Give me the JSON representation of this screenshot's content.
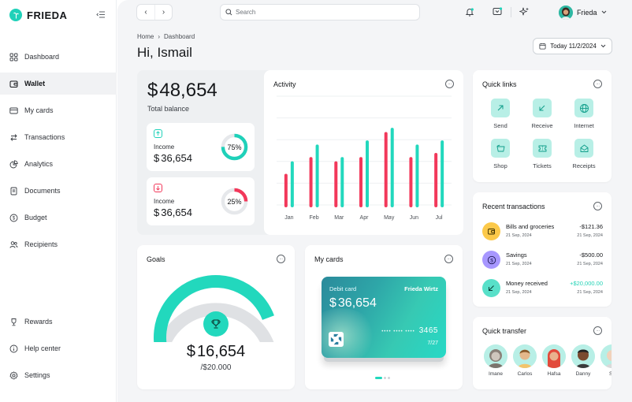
{
  "brand": {
    "name": "FRIEDA",
    "accent": "#1fd1b9",
    "negative": "#f2385a"
  },
  "sidebar": {
    "items": [
      {
        "label": "Dashboard",
        "icon": "grid-icon"
      },
      {
        "label": "Wallet",
        "icon": "wallet-icon",
        "active": true
      },
      {
        "label": "My cards",
        "icon": "card-icon"
      },
      {
        "label": "Transactions",
        "icon": "swap-icon"
      },
      {
        "label": "Analytics",
        "icon": "pie-icon"
      },
      {
        "label": "Documents",
        "icon": "document-icon"
      },
      {
        "label": "Budget",
        "icon": "dollar-circle-icon"
      },
      {
        "label": "Recipients",
        "icon": "users-icon"
      }
    ],
    "bottom_items": [
      {
        "label": "Rewards",
        "icon": "trophy-icon"
      },
      {
        "label": "Help center",
        "icon": "info-icon"
      },
      {
        "label": "Settings",
        "icon": "gear-icon"
      }
    ]
  },
  "topbar": {
    "search_placeholder": "Search",
    "user_name": "Frieda"
  },
  "page": {
    "breadcrumb": [
      "Home",
      "Dashboard"
    ],
    "greeting": "Hi, Ismail",
    "date_label": "Today 11/2/2024"
  },
  "balance": {
    "currency": "$",
    "amount": "48,654",
    "label": "Total balance",
    "income_cards": [
      {
        "label": "Income",
        "amount": "36,654",
        "percent_text": "75%",
        "percent": 0.75,
        "color": "#1fd1b9",
        "direction": "up"
      },
      {
        "label": "Income",
        "amount": "36,654",
        "percent_text": "25%",
        "percent": 0.25,
        "color": "#f2385a",
        "direction": "down"
      }
    ]
  },
  "activity": {
    "title": "Activity"
  },
  "chart_data": {
    "type": "bar",
    "categories": [
      "Jan",
      "Feb",
      "Mar",
      "Apr",
      "May",
      "Jun",
      "Jul"
    ],
    "series": [
      {
        "color": "#f2385a",
        "values": [
          8,
          12,
          11,
          12,
          18,
          12,
          13
        ]
      },
      {
        "color": "#22d8bd",
        "values": [
          11,
          15,
          12,
          16,
          19,
          15,
          16
        ]
      }
    ],
    "ylim": [
      0,
      26
    ],
    "grid": true,
    "legend": "none"
  },
  "quick_links": {
    "title": "Quick links",
    "items": [
      {
        "label": "Send",
        "icon": "arrow-up-right-icon"
      },
      {
        "label": "Receive",
        "icon": "arrow-down-left-icon"
      },
      {
        "label": "Internet",
        "icon": "globe-icon"
      },
      {
        "label": "Shop",
        "icon": "basket-icon"
      },
      {
        "label": "Tickets",
        "icon": "ticket-icon"
      },
      {
        "label": "Receipts",
        "icon": "mail-icon"
      }
    ]
  },
  "recent_transactions": {
    "title": "Recent transactions",
    "items": [
      {
        "name": "Bills and groceries",
        "date": "21 Sep, 2024",
        "amount": "-$121.36",
        "amount_date": "21 Sep, 2024",
        "icon": "wallet-icon",
        "icon_bg": "#fcc94a",
        "positive": false
      },
      {
        "name": "Savings",
        "date": "21 Sep, 2024",
        "amount": "-$500.00",
        "amount_date": "21 Sep, 2024",
        "icon": "dollar-icon",
        "icon_bg": "#a797ff",
        "positive": false
      },
      {
        "name": "Money received",
        "date": "21 Sep, 2024",
        "amount": "+$20,000.00",
        "amount_date": "21 Sep, 2024",
        "icon": "arrow-down-left-icon",
        "icon_bg": "#58e0c9",
        "positive": true
      }
    ]
  },
  "quick_transfer": {
    "title": "Quick transfer",
    "people": [
      {
        "name": "Imane",
        "color": "#b8efe6"
      },
      {
        "name": "Carlos",
        "color": "#b8efe6"
      },
      {
        "name": "Hafsa",
        "color": "#b8efe6"
      },
      {
        "name": "Danny",
        "color": "#b8efe6"
      },
      {
        "name": "Sa",
        "color": "#b8efe6"
      }
    ]
  },
  "goals": {
    "title": "Goals",
    "currency": "$",
    "amount": "16,654",
    "target": "/$20.000",
    "progress": 0.8325
  },
  "my_cards": {
    "title": "My cards",
    "card_type": "Debit card",
    "holder": "Frieda Wirtz",
    "currency": "$",
    "balance": "36,654",
    "masked_number": "•••• •••• ••••",
    "last4": "3465",
    "expiry": "7/27",
    "page_count": 3,
    "current_page": 0
  }
}
